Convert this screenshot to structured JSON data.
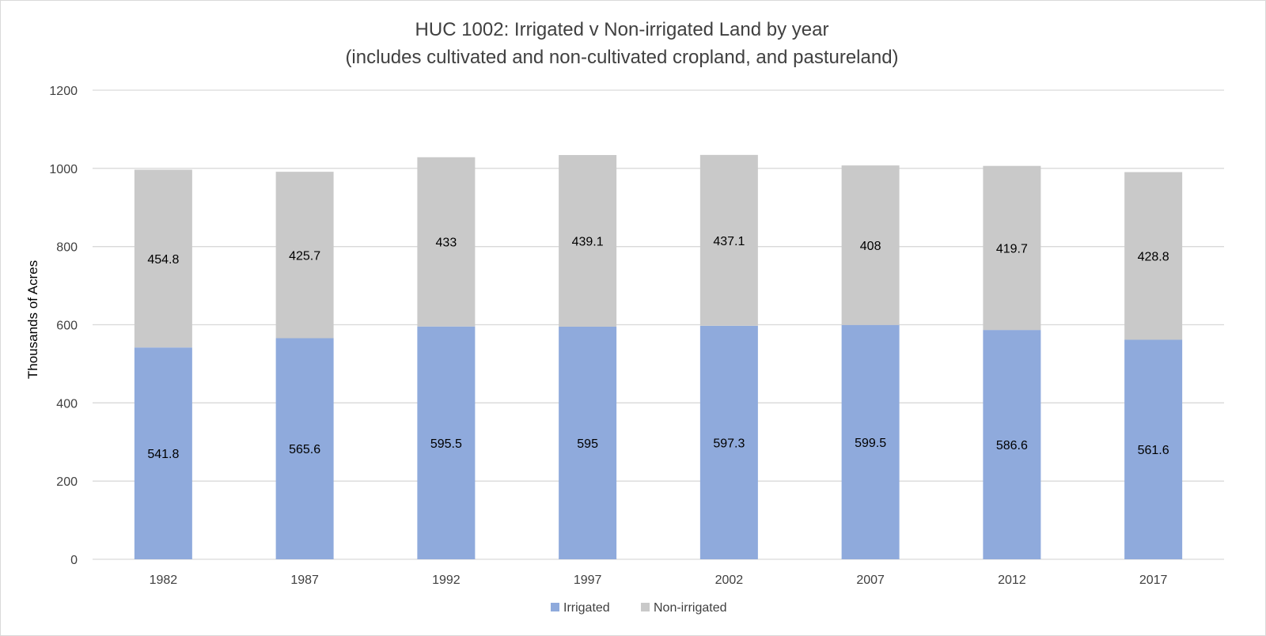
{
  "chart_data": {
    "type": "bar",
    "stacked": true,
    "title": "HUC 1002: Irrigated v Non-irrigated Land by year",
    "subtitle": "(includes cultivated and non-cultivated cropland, and pastureland)",
    "xlabel": "",
    "ylabel": "Thousands of Acres",
    "ylim": [
      0,
      1200
    ],
    "yticks": [
      0,
      200,
      400,
      600,
      800,
      1000,
      1200
    ],
    "grid": true,
    "legend_position": "bottom",
    "categories": [
      "1982",
      "1987",
      "1992",
      "1997",
      "2002",
      "2007",
      "2012",
      "2017"
    ],
    "series": [
      {
        "name": "Irrigated",
        "color": "#8faadc",
        "values": [
          541.8,
          565.6,
          595.5,
          595,
          597.3,
          599.5,
          586.6,
          561.6
        ],
        "labels": [
          "541.8",
          "565.6",
          "595.5",
          "595",
          "597.3",
          "599.5",
          "586.6",
          "561.6"
        ]
      },
      {
        "name": "Non-irrigated",
        "color": "#c9c9c9",
        "values": [
          454.8,
          425.7,
          433,
          439.1,
          437.1,
          408,
          419.7,
          428.8
        ],
        "labels": [
          "454.8",
          "425.7",
          "433",
          "439.1",
          "437.1",
          "408",
          "419.7",
          "428.8"
        ]
      }
    ]
  }
}
